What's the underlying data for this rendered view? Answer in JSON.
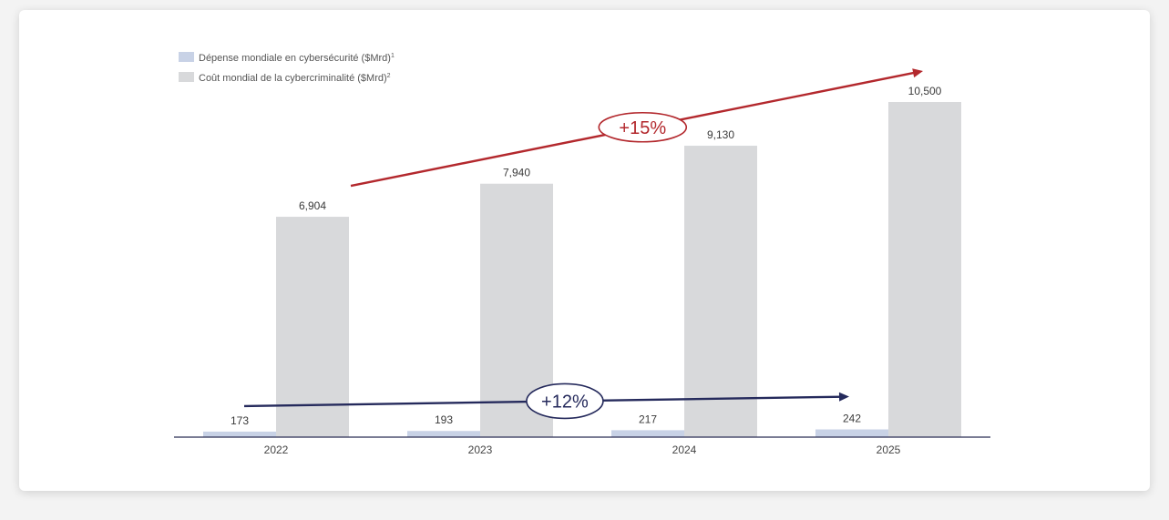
{
  "chart_data": {
    "type": "bar",
    "categories": [
      "2022",
      "2023",
      "2024",
      "2025"
    ],
    "series": [
      {
        "name": "Dépense mondiale en cybersécurité ($Mrd)",
        "sup": "1",
        "values": [
          173,
          193,
          217,
          242
        ],
        "color": "#c8d2e6"
      },
      {
        "name": "Coût mondial de la cybercriminalité ($Mrd)",
        "sup": "2",
        "values": [
          6904,
          7940,
          9130,
          10500
        ],
        "color": "#d8d9db"
      }
    ],
    "value_labels": [
      [
        "173",
        "193",
        "217",
        "242"
      ],
      [
        "6,904",
        "7,940",
        "9,130",
        "10,500"
      ]
    ],
    "ylim": [
      0,
      10500
    ],
    "grid": false,
    "legend_position": "top-left",
    "annotations": [
      {
        "text": "+15%",
        "series": "Coût mondial de la cybercriminalité ($Mrd)",
        "color": "#b3282d"
      },
      {
        "text": "+12%",
        "series": "Dépense mondiale en cybersécurité ($Mrd)",
        "color": "#252a5c"
      }
    ]
  }
}
